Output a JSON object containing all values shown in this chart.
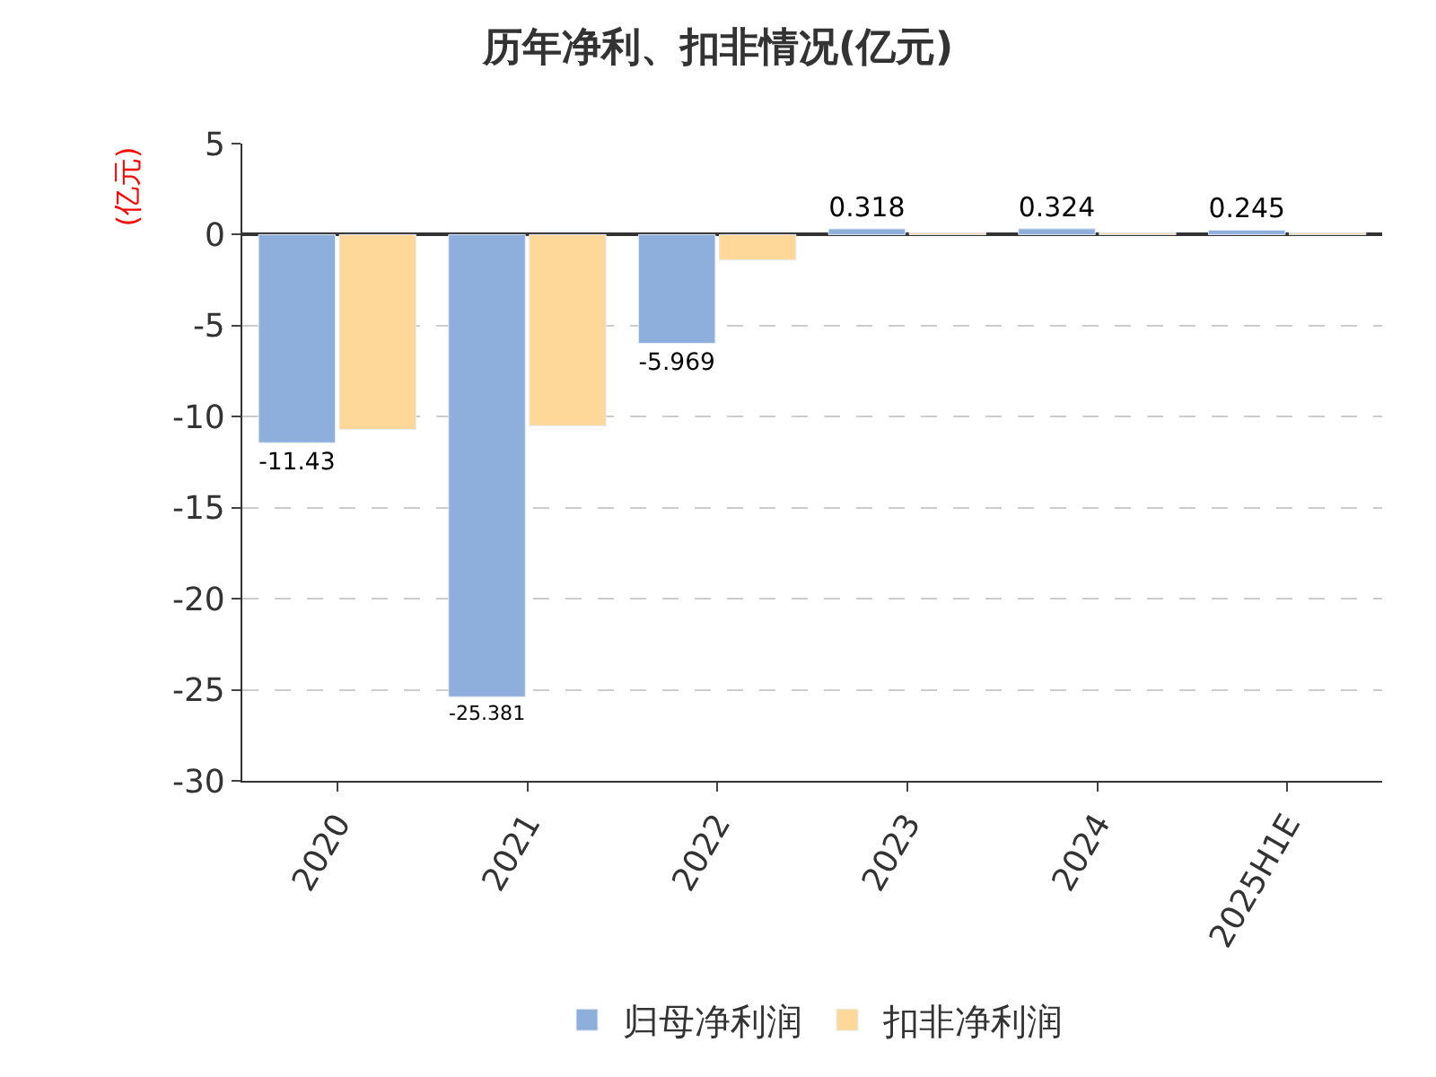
{
  "chart_data": {
    "type": "bar",
    "title": "历年净利、扣非情况(亿元)",
    "ylabel": "(亿元)",
    "categories": [
      "2020",
      "2021",
      "2022",
      "2023",
      "2024",
      "2025H1E"
    ],
    "series": [
      {
        "name": "归母净利润",
        "color": "#8eaedb",
        "values": [
          -11.43,
          -25.381,
          -5.969,
          0.318,
          0.324,
          0.245
        ],
        "value_labels": [
          "-11.43",
          "-25.381",
          "-5.969",
          "0.318",
          "0.324",
          "0.245"
        ]
      },
      {
        "name": "扣非净利润",
        "color": "#fed898",
        "values": [
          -10.7,
          -10.5,
          -1.4,
          0.1,
          0.1,
          0.1
        ]
      }
    ],
    "ylim": [
      -30,
      5
    ],
    "yticks": [
      -30,
      -25,
      -20,
      -15,
      -10,
      -5,
      0,
      5
    ],
    "grid": "y",
    "legend": "bottom"
  }
}
